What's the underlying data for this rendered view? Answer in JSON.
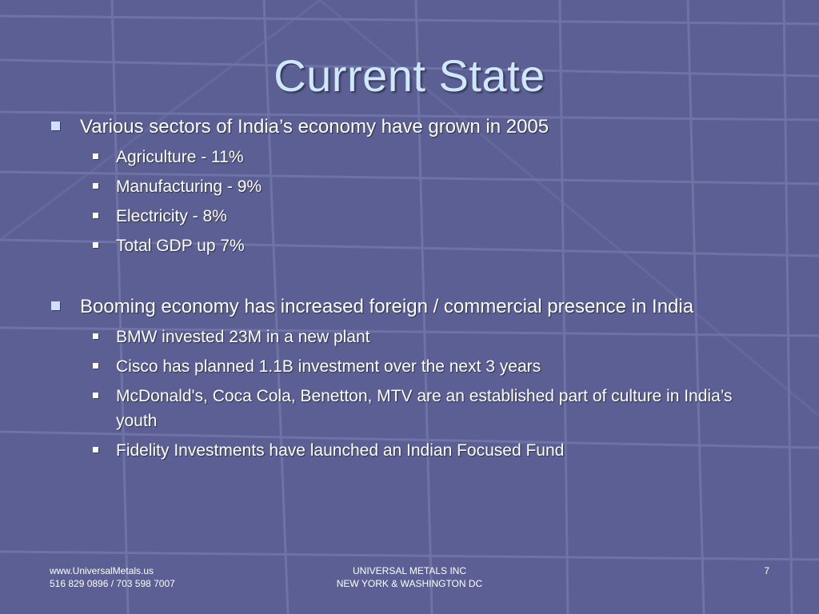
{
  "slide": {
    "title": "Current State",
    "section1": {
      "heading": "Various sectors of India’s economy have grown in 2005",
      "items": [
        "Agriculture - 11%",
        "Manufacturing - 9%",
        "Electricity - 8%",
        "Total GDP up 7%"
      ]
    },
    "section2": {
      "heading": "Booming economy has increased foreign / commercial presence in India",
      "items": [
        "BMW invested 23M in a new plant",
        "Cisco has planned 1.1B investment over the next 3 years",
        "McDonald's, Coca Cola, Benetton, MTV are an established part of culture in India’s youth",
        "Fidelity Investments have launched an Indian Focused Fund"
      ]
    }
  },
  "footer": {
    "left_line1": "www.UniversalMetals.us",
    "left_line2": "516 829 0896 / 703 598 7007",
    "center_line1": "UNIVERSAL METALS INC",
    "center_line2": "NEW YORK & WASHINGTON DC",
    "page_number": "7"
  },
  "colors": {
    "background": "#5b5f93",
    "title": "#cfe8ff",
    "text": "#ffffff",
    "grid_line": "#7e82b4"
  },
  "icons": {
    "level1_bullet": "square-bullet-icon",
    "level2_bullet": "small-square-bullet-icon"
  }
}
